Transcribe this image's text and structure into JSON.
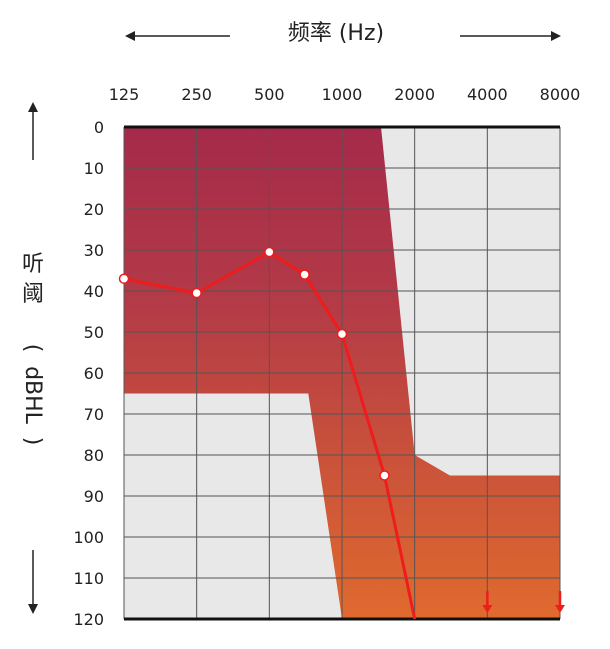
{
  "chart_data": {
    "type": "line",
    "x_title": "频率 (Hz)",
    "y_title_chars": [
      "听",
      "阈",
      "(",
      "dBHL",
      ")"
    ],
    "x_categories": [
      "125",
      "250",
      "500",
      "1000",
      "2000",
      "4000",
      "8000"
    ],
    "y_ticks": [
      0,
      10,
      20,
      30,
      40,
      50,
      60,
      70,
      80,
      90,
      100,
      110,
      120
    ],
    "ylim": [
      0,
      120
    ],
    "y_inverted": true,
    "grid": true,
    "series": [
      {
        "points": [
          {
            "x": 125,
            "y": 37
          },
          {
            "x": 250,
            "y": 40.5
          },
          {
            "x": 500,
            "y": 30.5
          },
          {
            "x": 700,
            "y": 36
          },
          {
            "x": 1000,
            "y": 50.5
          },
          {
            "x": 1500,
            "y": 85
          },
          {
            "x": 2000,
            "y": 120
          }
        ],
        "no_response_arrows_at": [
          4000,
          8000
        ]
      }
    ],
    "shaded_region": [
      {
        "x": 125,
        "y": 0
      },
      {
        "x": 1450,
        "y": 0
      },
      {
        "x": 2000,
        "y": 80
      },
      {
        "x": 2800,
        "y": 85
      },
      {
        "x": 8000,
        "y": 85
      },
      {
        "x": 8000,
        "y": 120
      },
      {
        "x": 1000,
        "y": 120
      },
      {
        "x": 725,
        "y": 65
      },
      {
        "x": 125,
        "y": 65
      }
    ],
    "colors": {
      "region_top": "#a52a4a",
      "region_bottom": "#e06a2e",
      "line": "#ee1c1c",
      "grid": "#555555",
      "plot_bg": "#e8e8e8"
    }
  }
}
